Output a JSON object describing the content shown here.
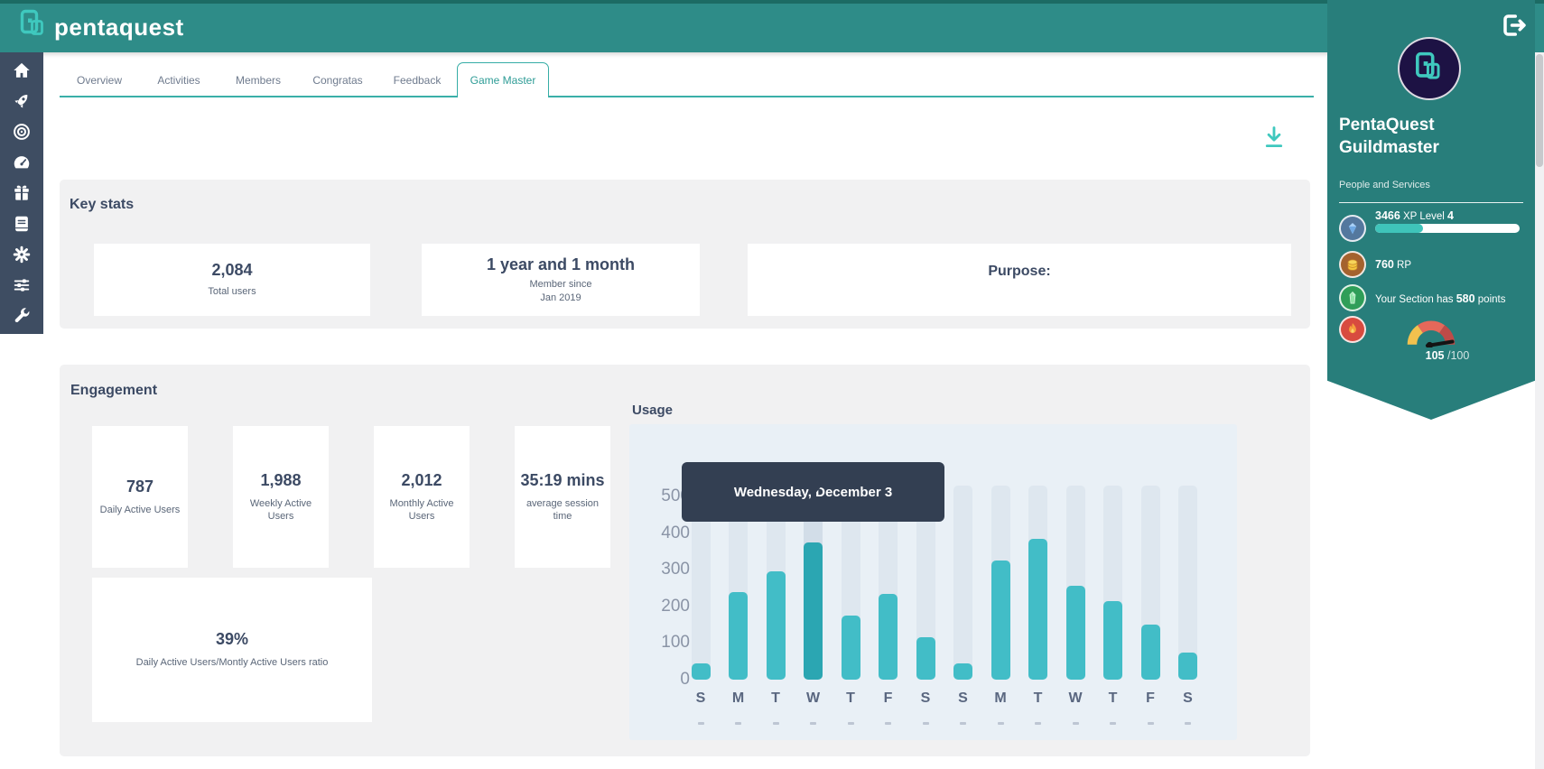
{
  "header": {
    "logo_text": "pentaquest",
    "logo_icon": "pentaquest-logo-icon",
    "logout_icon": "logout-icon"
  },
  "sidebar": {
    "icons": [
      "home-icon",
      "rocket-icon",
      "target-icon",
      "gauge-icon",
      "gift-icon",
      "book-icon",
      "gear-icon",
      "sliders-icon",
      "wrench-icon"
    ]
  },
  "tabs": {
    "items": [
      {
        "label": "Overview",
        "active": false
      },
      {
        "label": "Activities",
        "active": false
      },
      {
        "label": "Members",
        "active": false
      },
      {
        "label": "Congratas",
        "active": false
      },
      {
        "label": "Feedback",
        "active": false
      },
      {
        "label": "Game Master",
        "active": true
      }
    ]
  },
  "toolbar": {
    "download_icon": "download-icon"
  },
  "key_stats": {
    "title": "Key stats",
    "cards": [
      {
        "value": "2,084",
        "label": "Total users"
      },
      {
        "value": "1 year and 1 month",
        "label_line1": "Member since",
        "label_line2": "Jan 2019"
      },
      {
        "heading": "Purpose:"
      }
    ]
  },
  "engagement": {
    "title": "Engagement",
    "cards": [
      {
        "value": "787",
        "label": "Daily Active Users"
      },
      {
        "value": "1,988",
        "label": "Weekly Active Users"
      },
      {
        "value": "2,012",
        "label": "Monthly Active Users"
      },
      {
        "value": "35:19 mins",
        "label": "average session time"
      }
    ],
    "ratio_card": {
      "value": "39%",
      "label": "Daily Active Users/Montly Active Users ratio"
    }
  },
  "chart_data": {
    "type": "bar",
    "title": "Usage",
    "categories": [
      "S",
      "M",
      "T",
      "W",
      "T",
      "F",
      "S",
      "S",
      "M",
      "T",
      "W",
      "T",
      "F",
      "S"
    ],
    "values": [
      45,
      240,
      295,
      375,
      175,
      235,
      115,
      45,
      325,
      385,
      255,
      215,
      150,
      75
    ],
    "highlighted_index": 3,
    "tooltip": "Wednesday, December 3",
    "xlabel": "",
    "ylabel": "",
    "yticks": [
      0,
      100,
      200,
      300,
      400,
      500
    ],
    "ylim": [
      0,
      530
    ],
    "track_value": 530,
    "grid": false,
    "legend_position": "none",
    "bar_color": "#42BDC7",
    "bar_color_highlight": "#2BA6B2",
    "track_color": "#DEE7EF",
    "track_color_highlight": "#D2DDE8",
    "bg_color": "#E9F0F6",
    "tooltip_bg": "#333F52"
  },
  "profile": {
    "name_line1": "PentaQuest",
    "name_line2": "Guildmaster",
    "subtitle": "People and Services",
    "xp": {
      "icon": "diamond-icon",
      "value": "3466",
      "label": " XP Level ",
      "level": "4",
      "progress_pct": 33
    },
    "rp": {
      "icon": "coins-icon",
      "value": "760",
      "label": " RP"
    },
    "section": {
      "icon": "gem-icon",
      "prefix": "Your Section has ",
      "value": "580",
      "suffix": " points"
    },
    "gauge": {
      "icon": "flame-icon",
      "value": "105",
      "max_display": " /100"
    }
  },
  "colors": {
    "header_teal": "#2E8C88",
    "panel_teal": "#287E7B",
    "sidebar_slate": "#3E4D62",
    "accent_teal": "#3AAFA8",
    "bright_teal": "#3FC8BE",
    "dark_text": "#3C4A64",
    "panel_grey": "#F1F1F2"
  }
}
